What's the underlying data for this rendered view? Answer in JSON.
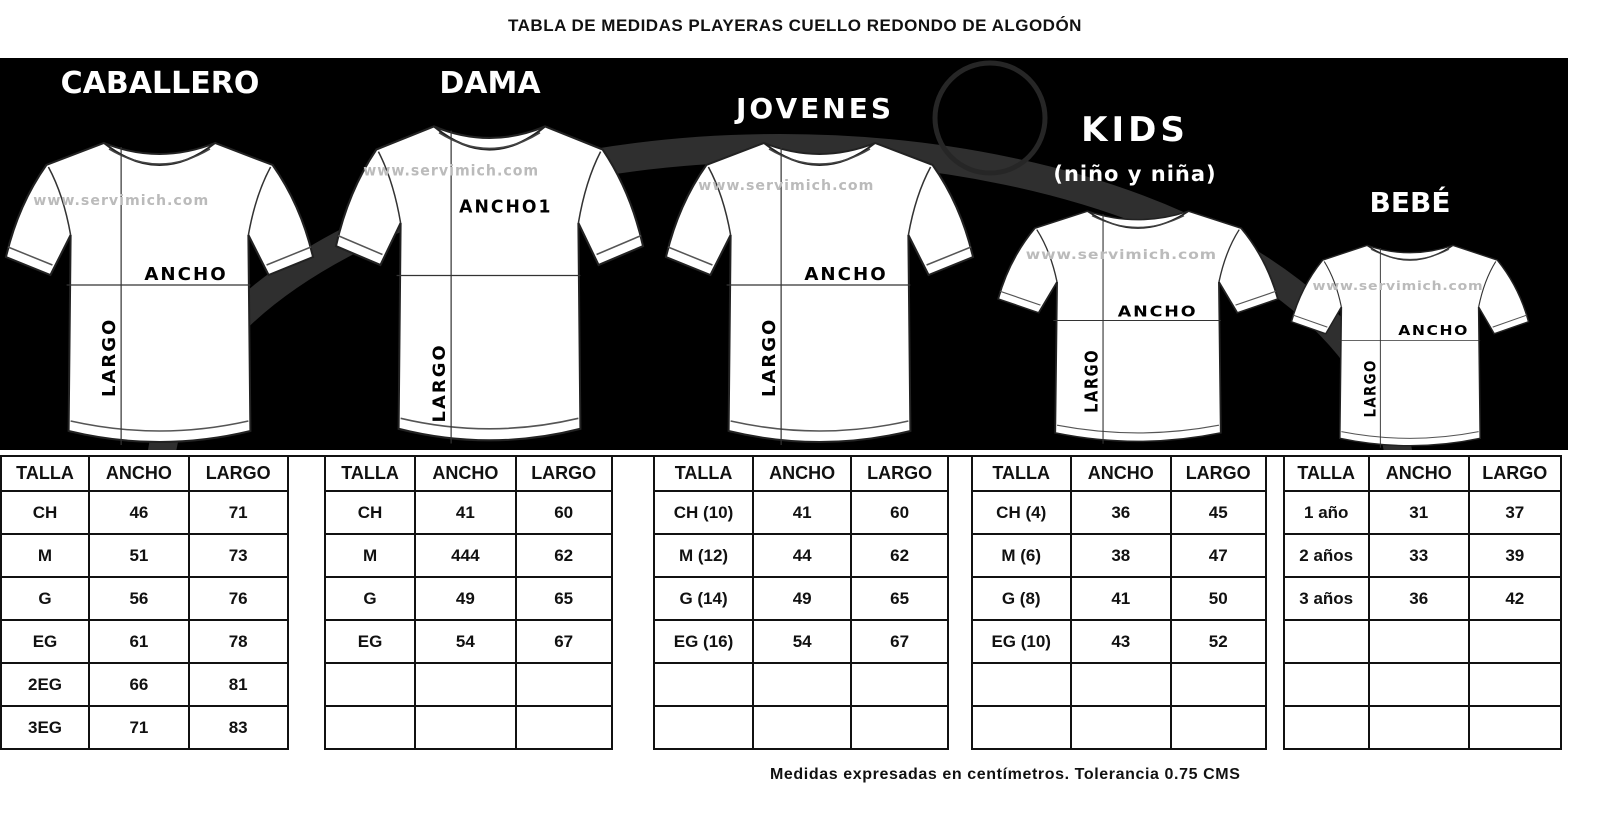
{
  "title": "TABLA DE MEDIDAS PLAYERAS CUELLO REDONDO DE ALGODÓN",
  "watermark": "www.servimich.com",
  "logo_text": "servimich",
  "categories": [
    {
      "name": "CABALLERO",
      "ancho_label": "ANCHO",
      "largo_label": "LARGO"
    },
    {
      "name": "DAMA",
      "ancho_label": "ANCHO1",
      "largo_label": "LARGO"
    },
    {
      "name": "JOVENES",
      "ancho_label": "ANCHO",
      "largo_label": "LARGO"
    },
    {
      "name": "KIDS",
      "subtitle": "(niño y niña)",
      "ancho_label": "ANCHO",
      "largo_label": "LARGO"
    },
    {
      "name": "BEBÉ",
      "ancho_label": "ANCHO",
      "largo_label": "LARGO"
    }
  ],
  "tables": [
    {
      "headers": [
        "TALLA",
        "ANCHO",
        "LARGO"
      ],
      "rows": [
        [
          "CH",
          "46",
          "71"
        ],
        [
          "M",
          "51",
          "73"
        ],
        [
          "G",
          "56",
          "76"
        ],
        [
          "EG",
          "61",
          "78"
        ],
        [
          "2EG",
          "66",
          "81"
        ],
        [
          "3EG",
          "71",
          "83"
        ]
      ]
    },
    {
      "headers": [
        "TALLA",
        "ANCHO",
        "LARGO"
      ],
      "rows": [
        [
          "CH",
          "41",
          "60"
        ],
        [
          "M",
          "444",
          "62"
        ],
        [
          "G",
          "49",
          "65"
        ],
        [
          "EG",
          "54",
          "67"
        ],
        [
          "",
          "",
          ""
        ],
        [
          "",
          "",
          ""
        ]
      ]
    },
    {
      "headers": [
        "TALLA",
        "ANCHO",
        "LARGO"
      ],
      "rows": [
        [
          "CH (10)",
          "41",
          "60"
        ],
        [
          "M (12)",
          "44",
          "62"
        ],
        [
          "G (14)",
          "49",
          "65"
        ],
        [
          "EG (16)",
          "54",
          "67"
        ],
        [
          "",
          "",
          ""
        ],
        [
          "",
          "",
          ""
        ]
      ]
    },
    {
      "headers": [
        "TALLA",
        "ANCHO",
        "LARGO"
      ],
      "rows": [
        [
          "CH (4)",
          "36",
          "45"
        ],
        [
          "M (6)",
          "38",
          "47"
        ],
        [
          "G (8)",
          "41",
          "50"
        ],
        [
          "EG (10)",
          "43",
          "52"
        ],
        [
          "",
          "",
          ""
        ],
        [
          "",
          "",
          ""
        ]
      ]
    },
    {
      "headers": [
        "TALLA",
        "ANCHO",
        "LARGO"
      ],
      "rows": [
        [
          "1 año",
          "31",
          "37"
        ],
        [
          "2 años",
          "33",
          "39"
        ],
        [
          "3 años",
          "36",
          "42"
        ],
        [
          "",
          "",
          ""
        ],
        [
          "",
          "",
          ""
        ],
        [
          "",
          "",
          ""
        ]
      ]
    }
  ],
  "footer": "Medidas expresadas en centímetros. Tolerancia 0.75 CMS"
}
